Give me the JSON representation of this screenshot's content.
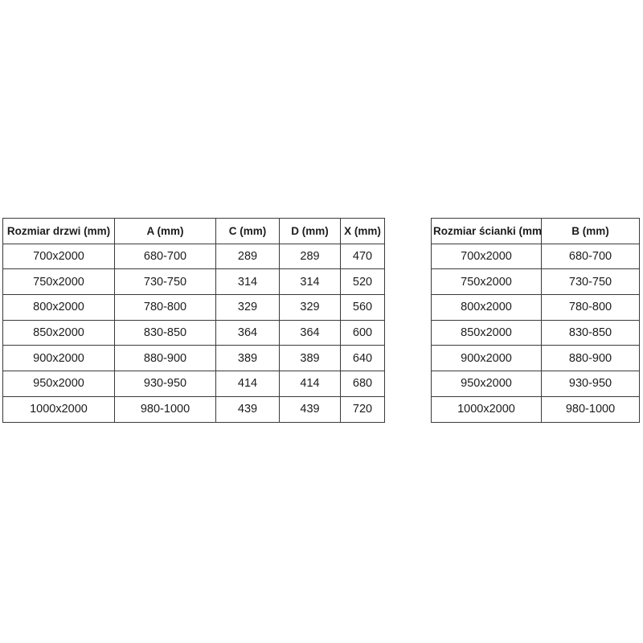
{
  "page": {
    "background": "#ffffff",
    "border_color": "#3a3a3a",
    "text_color": "#1c1c1c"
  },
  "tables": [
    {
      "name": "door-sizes",
      "headers": [
        "Rozmiar drzwi (mm)",
        "A (mm)",
        "C (mm)",
        "D (mm)",
        "X (mm)"
      ],
      "rows": [
        [
          "700x2000",
          "680-700",
          "289",
          "289",
          "470"
        ],
        [
          "750x2000",
          "730-750",
          "314",
          "314",
          "520"
        ],
        [
          "800x2000",
          "780-800",
          "329",
          "329",
          "560"
        ],
        [
          "850x2000",
          "830-850",
          "364",
          "364",
          "600"
        ],
        [
          "900x2000",
          "880-900",
          "389",
          "389",
          "640"
        ],
        [
          "950x2000",
          "930-950",
          "414",
          "414",
          "680"
        ],
        [
          "1000x2000",
          "980-1000",
          "439",
          "439",
          "720"
        ]
      ]
    },
    {
      "name": "wall-sizes",
      "headers": [
        "Rozmiar ścianki (mm)",
        "B (mm)"
      ],
      "rows": [
        [
          "700x2000",
          "680-700"
        ],
        [
          "750x2000",
          "730-750"
        ],
        [
          "800x2000",
          "780-800"
        ],
        [
          "850x2000",
          "830-850"
        ],
        [
          "900x2000",
          "880-900"
        ],
        [
          "950x2000",
          "930-950"
        ],
        [
          "1000x2000",
          "980-1000"
        ]
      ]
    }
  ]
}
